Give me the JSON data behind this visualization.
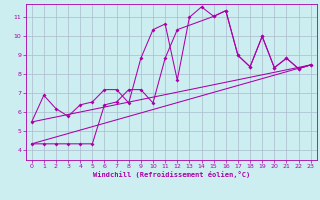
{
  "xlabel": "Windchill (Refroidissement éolien,°C)",
  "bg_color": "#cceef0",
  "grid_color": "#aabbcc",
  "line_color": "#aa00aa",
  "xlim": [
    -0.5,
    23.5
  ],
  "ylim": [
    3.5,
    11.7
  ],
  "xticks": [
    0,
    1,
    2,
    3,
    4,
    5,
    6,
    7,
    8,
    9,
    10,
    11,
    12,
    13,
    14,
    15,
    16,
    17,
    18,
    19,
    20,
    21,
    22,
    23
  ],
  "yticks": [
    4,
    5,
    6,
    7,
    8,
    9,
    10,
    11
  ],
  "line1_x": [
    0,
    1,
    2,
    3,
    4,
    5,
    6,
    7,
    8,
    9,
    10,
    11,
    12,
    13,
    14,
    15,
    16,
    17,
    18,
    19,
    20,
    21,
    22,
    23
  ],
  "line1_y": [
    5.5,
    6.9,
    6.2,
    5.8,
    6.4,
    6.55,
    7.2,
    7.2,
    6.5,
    8.85,
    10.35,
    10.65,
    7.7,
    11.0,
    11.55,
    11.05,
    11.35,
    9.0,
    8.4,
    10.0,
    8.35,
    8.85,
    8.3,
    8.5
  ],
  "line2_x": [
    0,
    1,
    2,
    3,
    4,
    5,
    6,
    7,
    8,
    9,
    10,
    11,
    12,
    15,
    16,
    17,
    18,
    19,
    20,
    21,
    22,
    23
  ],
  "line2_y": [
    4.35,
    4.35,
    4.35,
    4.35,
    4.35,
    4.35,
    6.4,
    6.55,
    7.2,
    7.2,
    6.5,
    8.85,
    10.35,
    11.05,
    11.35,
    9.0,
    8.4,
    10.0,
    8.35,
    8.85,
    8.3,
    8.5
  ],
  "line3_x": [
    0,
    23
  ],
  "line3_y": [
    4.35,
    8.5
  ],
  "line4_x": [
    0,
    23
  ],
  "line4_y": [
    5.5,
    8.5
  ]
}
